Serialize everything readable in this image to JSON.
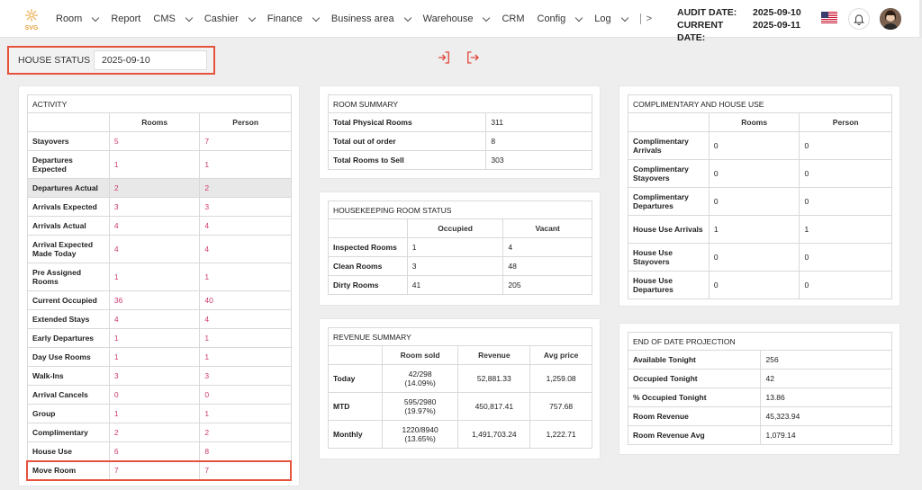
{
  "brand": {
    "logo_text": "SVG",
    "logo_color": "#e8a23a"
  },
  "nav": {
    "items": [
      {
        "label": "Room",
        "has_menu": true
      },
      {
        "label": "Report",
        "has_menu": false
      },
      {
        "label": "CMS",
        "has_menu": true
      },
      {
        "label": "Cashier",
        "has_menu": true
      },
      {
        "label": "Finance",
        "has_menu": true
      },
      {
        "label": "Business area",
        "has_menu": true
      },
      {
        "label": "Warehouse",
        "has_menu": true
      },
      {
        "label": "CRM",
        "has_menu": false
      },
      {
        "label": "Config",
        "has_menu": true
      },
      {
        "label": "Log",
        "has_menu": true
      }
    ],
    "more_label": ">"
  },
  "header": {
    "audit_label": "AUDIT DATE:",
    "audit_date": "2025-09-10",
    "current_label": "CURRENT DATE:",
    "current_date": "2025-09-11",
    "flag_icon": "us-flag-icon",
    "bell_icon": "bell-icon"
  },
  "house_status": {
    "label": "HOUSE STATUS",
    "date": "2025-09-10"
  },
  "activity": {
    "title": "ACTIVITY",
    "col_rooms": "Rooms",
    "col_person": "Person",
    "rows": [
      {
        "label": "Stayovers",
        "rooms": "5",
        "person": "7"
      },
      {
        "label": "Departures Expected",
        "rooms": "1",
        "person": "1"
      },
      {
        "label": "Departures Actual",
        "rooms": "2",
        "person": "2"
      },
      {
        "label": "Arrivals Expected",
        "rooms": "3",
        "person": "3"
      },
      {
        "label": "Arrivals Actual",
        "rooms": "4",
        "person": "4"
      },
      {
        "label": "Arrival Expected Made Today",
        "rooms": "4",
        "person": "4"
      },
      {
        "label": "Pre Assigned Rooms",
        "rooms": "1",
        "person": "1"
      },
      {
        "label": "Current Occupied",
        "rooms": "36",
        "person": "40"
      },
      {
        "label": "Extended Stays",
        "rooms": "4",
        "person": "4"
      },
      {
        "label": "Early Departures",
        "rooms": "1",
        "person": "1"
      },
      {
        "label": "Day Use Rooms",
        "rooms": "1",
        "person": "1"
      },
      {
        "label": "Walk-Ins",
        "rooms": "3",
        "person": "3"
      },
      {
        "label": "Arrival Cancels",
        "rooms": "0",
        "person": "0"
      },
      {
        "label": "Group",
        "rooms": "1",
        "person": "1"
      },
      {
        "label": "Complimentary",
        "rooms": "2",
        "person": "2"
      },
      {
        "label": "House Use",
        "rooms": "6",
        "person": "8"
      },
      {
        "label": "Move Room",
        "rooms": "7",
        "person": "7"
      }
    ]
  },
  "room_summary": {
    "title": "ROOM SUMMARY",
    "rows": [
      {
        "label": "Total Physical Rooms",
        "value": "311"
      },
      {
        "label": "Total out of order",
        "value": "8"
      },
      {
        "label": "Total Rooms to Sell",
        "value": "303"
      }
    ]
  },
  "housekeeping": {
    "title": "HOUSEKEEPING ROOM STATUS",
    "col_occupied": "Occupied",
    "col_vacant": "Vacant",
    "rows": [
      {
        "label": "Inspected Rooms",
        "occupied": "1",
        "vacant": "4"
      },
      {
        "label": "Clean Rooms",
        "occupied": "3",
        "vacant": "48"
      },
      {
        "label": "Dirty Rooms",
        "occupied": "41",
        "vacant": "205"
      }
    ]
  },
  "revenue_summary": {
    "title": "REVENUE SUMMARY",
    "col_sold": "Room sold",
    "col_revenue": "Revenue",
    "col_avg": "Avg price",
    "rows": [
      {
        "label": "Today",
        "sold": "42/298",
        "pct": "(14.09%)",
        "revenue": "52,881.33",
        "avg": "1,259.08"
      },
      {
        "label": "MTD",
        "sold": "595/2980",
        "pct": "(19.97%)",
        "revenue": "450,817.41",
        "avg": "757.68"
      },
      {
        "label": "Monthly",
        "sold": "1220/8940",
        "pct": "(13.65%)",
        "revenue": "1,491,703.24",
        "avg": "1,222.71"
      }
    ]
  },
  "complimentary": {
    "title": "COMPLIMENTARY AND HOUSE USE",
    "col_rooms": "Rooms",
    "col_person": "Person",
    "rows": [
      {
        "label": "Complimentary Arrivals",
        "rooms": "0",
        "person": "0"
      },
      {
        "label": "Complimentary Stayovers",
        "rooms": "0",
        "person": "0"
      },
      {
        "label": "Complimentary Departures",
        "rooms": "0",
        "person": "0"
      },
      {
        "label": "House Use Arrivals",
        "rooms": "1",
        "person": "1"
      },
      {
        "label": "House Use Stayovers",
        "rooms": "0",
        "person": "0"
      },
      {
        "label": "House Use Departures",
        "rooms": "0",
        "person": "0"
      }
    ]
  },
  "projection": {
    "title": "END OF DATE PROJECTION",
    "rows": [
      {
        "label": "Available Tonight",
        "value": "256"
      },
      {
        "label": "Occupied Tonight",
        "value": "42"
      },
      {
        "label": "% Occupied Tonight",
        "value": "13.86"
      },
      {
        "label": "Room Revenue",
        "value": "45,323.94"
      },
      {
        "label": "Room Revenue Avg",
        "value": "1,079.14"
      }
    ]
  },
  "colors": {
    "accent_pink": "#cd3a72",
    "highlight_border": "#e5533d",
    "icon_red": "#e0483c"
  }
}
